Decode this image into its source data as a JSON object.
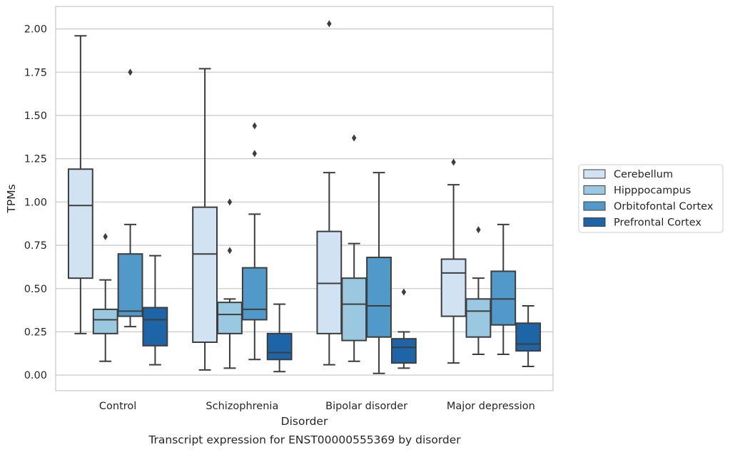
{
  "chart_data": {
    "type": "boxplot",
    "caption": "Transcript expression for ENST00000555369 by disorder",
    "xlabel": "Disorder",
    "ylabel": "TPMs",
    "ylim": [
      -0.09,
      2.13
    ],
    "yticks": [
      "0.00",
      "0.25",
      "0.50",
      "0.75",
      "1.00",
      "1.25",
      "1.50",
      "1.75",
      "2.00"
    ],
    "grid": true,
    "legend_position": "right",
    "categories": [
      "Control",
      "Schizophrenia",
      "Bipolar disorder",
      "Major depression"
    ],
    "series": [
      {
        "name": "Cerebellum",
        "color": "#d1e2f2",
        "boxes": [
          {
            "whislo": 0.24,
            "q1": 0.56,
            "med": 0.98,
            "q3": 1.19,
            "whishi": 1.96,
            "fliers": []
          },
          {
            "whislo": 0.03,
            "q1": 0.19,
            "med": 0.7,
            "q3": 0.97,
            "whishi": 1.77,
            "fliers": []
          },
          {
            "whislo": 0.06,
            "q1": 0.24,
            "med": 0.53,
            "q3": 0.83,
            "whishi": 1.17,
            "fliers": [
              2.03
            ]
          },
          {
            "whislo": 0.07,
            "q1": 0.34,
            "med": 0.59,
            "q3": 0.67,
            "whishi": 1.1,
            "fliers": [
              1.23
            ]
          }
        ]
      },
      {
        "name": "Hipppocampus",
        "color": "#9ac8e0",
        "boxes": [
          {
            "whislo": 0.08,
            "q1": 0.24,
            "med": 0.32,
            "q3": 0.38,
            "whishi": 0.55,
            "fliers": [
              0.8
            ]
          },
          {
            "whislo": 0.04,
            "q1": 0.24,
            "med": 0.35,
            "q3": 0.42,
            "whishi": 0.44,
            "fliers": [
              0.72,
              1.0
            ]
          },
          {
            "whislo": 0.08,
            "q1": 0.2,
            "med": 0.41,
            "q3": 0.56,
            "whishi": 0.76,
            "fliers": [
              1.37
            ]
          },
          {
            "whislo": 0.12,
            "q1": 0.22,
            "med": 0.37,
            "q3": 0.44,
            "whishi": 0.56,
            "fliers": [
              0.84
            ]
          }
        ]
      },
      {
        "name": "Orbitofontal Cortex",
        "color": "#5099c9",
        "boxes": [
          {
            "whislo": 0.28,
            "q1": 0.34,
            "med": 0.37,
            "q3": 0.7,
            "whishi": 0.87,
            "fliers": [
              1.75
            ]
          },
          {
            "whislo": 0.09,
            "q1": 0.32,
            "med": 0.38,
            "q3": 0.62,
            "whishi": 0.93,
            "fliers": [
              1.28,
              1.44
            ]
          },
          {
            "whislo": 0.01,
            "q1": 0.22,
            "med": 0.4,
            "q3": 0.68,
            "whishi": 1.17,
            "fliers": []
          },
          {
            "whislo": 0.12,
            "q1": 0.29,
            "med": 0.44,
            "q3": 0.6,
            "whishi": 0.87,
            "fliers": []
          }
        ]
      },
      {
        "name": "Prefrontal Cortex",
        "color": "#1e65a8",
        "boxes": [
          {
            "whislo": 0.06,
            "q1": 0.17,
            "med": 0.32,
            "q3": 0.39,
            "whishi": 0.69,
            "fliers": []
          },
          {
            "whislo": 0.02,
            "q1": 0.09,
            "med": 0.13,
            "q3": 0.24,
            "whishi": 0.41,
            "fliers": []
          },
          {
            "whislo": 0.04,
            "q1": 0.07,
            "med": 0.16,
            "q3": 0.21,
            "whishi": 0.25,
            "fliers": [
              0.48
            ]
          },
          {
            "whislo": 0.05,
            "q1": 0.14,
            "med": 0.18,
            "q3": 0.3,
            "whishi": 0.4,
            "fliers": []
          }
        ]
      }
    ]
  }
}
